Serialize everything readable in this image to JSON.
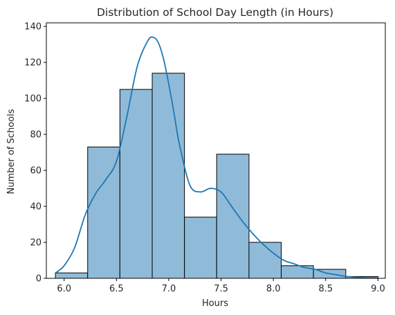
{
  "chart_data": {
    "type": "bar",
    "title": "Distribution of School Day Length (in Hours)",
    "xlabel": "Hours",
    "ylabel": "Number of Schools",
    "xlim": [
      5.83,
      9.07
    ],
    "ylim": [
      0,
      142
    ],
    "x_ticks": [
      "6.0",
      "6.5",
      "7.0",
      "7.5",
      "8.0",
      "8.5",
      "9.0"
    ],
    "y_ticks": [
      "0",
      "20",
      "40",
      "60",
      "80",
      "100",
      "120",
      "140"
    ],
    "bins": [
      {
        "start": 5.917,
        "end": 6.225,
        "count": 3
      },
      {
        "start": 6.225,
        "end": 6.533,
        "count": 73
      },
      {
        "start": 6.533,
        "end": 6.842,
        "count": 105
      },
      {
        "start": 6.842,
        "end": 7.15,
        "count": 114
      },
      {
        "start": 7.15,
        "end": 7.458,
        "count": 34
      },
      {
        "start": 7.458,
        "end": 7.767,
        "count": 69
      },
      {
        "start": 7.767,
        "end": 8.075,
        "count": 20
      },
      {
        "start": 8.075,
        "end": 8.383,
        "count": 7
      },
      {
        "start": 8.383,
        "end": 8.692,
        "count": 5
      },
      {
        "start": 8.692,
        "end": 9.0,
        "count": 1
      }
    ],
    "kde": {
      "x": [
        5.917,
        6.0,
        6.1,
        6.2,
        6.3,
        6.4,
        6.5,
        6.6,
        6.7,
        6.8,
        6.85,
        6.9,
        6.95,
        7.0,
        7.05,
        7.1,
        7.2,
        7.3,
        7.4,
        7.5,
        7.6,
        7.7,
        7.8,
        7.9,
        8.0,
        8.1,
        8.2,
        8.3,
        8.4,
        8.5,
        8.6,
        8.7,
        8.8,
        8.9,
        9.0
      ],
      "y": [
        3,
        7,
        17,
        35,
        47,
        55,
        65,
        90,
        118,
        132,
        134,
        131,
        122,
        108,
        92,
        75,
        52,
        48,
        50,
        48,
        40,
        32,
        25,
        19,
        14,
        10,
        8,
        6,
        5,
        3,
        2,
        1,
        0.5,
        0.3,
        0.2
      ]
    },
    "bar_color": "#8fbbd9",
    "bar_edge_color": "#000000",
    "kde_color": "#1f77b4",
    "grid": false,
    "legend": "none"
  }
}
